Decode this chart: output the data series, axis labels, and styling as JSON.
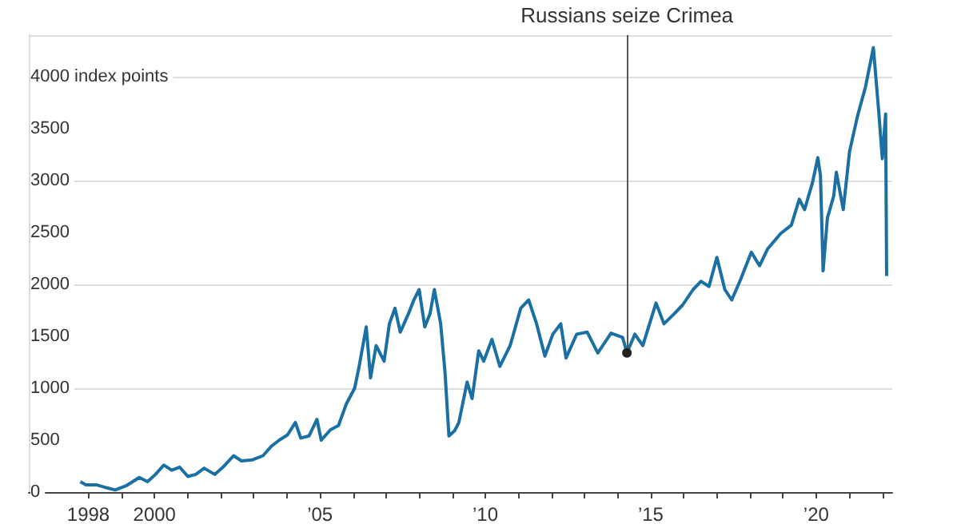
{
  "chart_data": {
    "type": "line",
    "color": "#1a6fa3",
    "x": [
      1997.76,
      1997.92,
      1998.24,
      1998.57,
      1998.81,
      1999.14,
      1999.54,
      1999.79,
      2000.03,
      2000.28,
      2000.52,
      2000.76,
      2001.01,
      2001.25,
      2001.5,
      2001.82,
      2002.07,
      2002.39,
      2002.63,
      2002.96,
      2003.28,
      2003.53,
      2003.77,
      2004.02,
      2004.26,
      2004.42,
      2004.67,
      2004.91,
      2005.04,
      2005.32,
      2005.56,
      2005.8,
      2006.05,
      2006.18,
      2006.4,
      2006.53,
      2006.7,
      2006.94,
      2007.1,
      2007.27,
      2007.43,
      2007.68,
      2007.84,
      2008.0,
      2008.17,
      2008.33,
      2008.46,
      2008.65,
      2008.78,
      2008.9,
      2009.07,
      2009.2,
      2009.45,
      2009.6,
      2009.8,
      2009.95,
      2010.2,
      2010.44,
      2010.75,
      2011.07,
      2011.31,
      2011.55,
      2011.8,
      2012.04,
      2012.28,
      2012.44,
      2012.76,
      2013.08,
      2013.4,
      2013.8,
      2014.15,
      2014.28,
      2014.52,
      2014.76,
      2015.16,
      2015.4,
      2015.72,
      2015.96,
      2016.28,
      2016.52,
      2016.76,
      2017.0,
      2017.24,
      2017.45,
      2017.72,
      2018.04,
      2018.29,
      2018.53,
      2018.93,
      2019.25,
      2019.49,
      2019.65,
      2019.89,
      2020.05,
      2020.13,
      2020.21,
      2020.34,
      2020.53,
      2020.61,
      2020.82,
      2021.01,
      2021.25,
      2021.49,
      2021.73,
      2021.89,
      2022.0,
      2022.1,
      2022.13
    ],
    "values": [
      100,
      70,
      70,
      40,
      20,
      60,
      140,
      100,
      170,
      260,
      210,
      240,
      150,
      170,
      230,
      170,
      240,
      350,
      300,
      310,
      350,
      440,
      500,
      550,
      670,
      520,
      540,
      700,
      500,
      600,
      640,
      850,
      1000,
      1200,
      1590,
      1100,
      1410,
      1260,
      1620,
      1770,
      1540,
      1720,
      1850,
      1950,
      1590,
      1720,
      1950,
      1620,
      1160,
      540,
      590,
      670,
      1060,
      900,
      1360,
      1260,
      1470,
      1210,
      1410,
      1770,
      1850,
      1620,
      1310,
      1520,
      1620,
      1290,
      1520,
      1540,
      1340,
      1530,
      1490,
      1340,
      1520,
      1410,
      1820,
      1620,
      1720,
      1800,
      1950,
      2030,
      1980,
      2260,
      1950,
      1850,
      2050,
      2310,
      2180,
      2340,
      2490,
      2570,
      2820,
      2720,
      2980,
      3220,
      3050,
      2130,
      2640,
      2850,
      3080,
      2720,
      3280,
      3620,
      3900,
      4280,
      3670,
      3210,
      3640,
      2080
    ],
    "xlim": [
      1996.2,
      2022.3
    ],
    "xticks": [
      {
        "value": 1998,
        "label": "1998"
      },
      {
        "value": 1999,
        "label": null
      },
      {
        "value": 2000,
        "label": "2000"
      },
      {
        "value": 2001,
        "label": null
      },
      {
        "value": 2002,
        "label": null
      },
      {
        "value": 2003,
        "label": null
      },
      {
        "value": 2004,
        "label": null
      },
      {
        "value": 2005,
        "label": "’05"
      },
      {
        "value": 2006,
        "label": null
      },
      {
        "value": 2007,
        "label": null
      },
      {
        "value": 2008,
        "label": null
      },
      {
        "value": 2009,
        "label": null
      },
      {
        "value": 2010,
        "label": "’10"
      },
      {
        "value": 2011,
        "label": null
      },
      {
        "value": 2012,
        "label": null
      },
      {
        "value": 2013,
        "label": null
      },
      {
        "value": 2014,
        "label": null
      },
      {
        "value": 2015,
        "label": "’15"
      },
      {
        "value": 2016,
        "label": null
      },
      {
        "value": 2017,
        "label": null
      },
      {
        "value": 2018,
        "label": null
      },
      {
        "value": 2019,
        "label": null
      },
      {
        "value": 2020,
        "label": "’20"
      },
      {
        "value": 2021,
        "label": null
      },
      {
        "value": 2022,
        "label": null
      }
    ],
    "ylim": [
      0,
      4400
    ],
    "yticks": [
      0,
      500,
      1000,
      1500,
      2000,
      2500,
      3000,
      3500,
      {
        "value": 4000,
        "label": "4000 index points"
      }
    ],
    "grid": "y",
    "annotations": [
      {
        "text": "Russians seize Crimea",
        "x": 2014.28,
        "y": 1340
      }
    ]
  }
}
